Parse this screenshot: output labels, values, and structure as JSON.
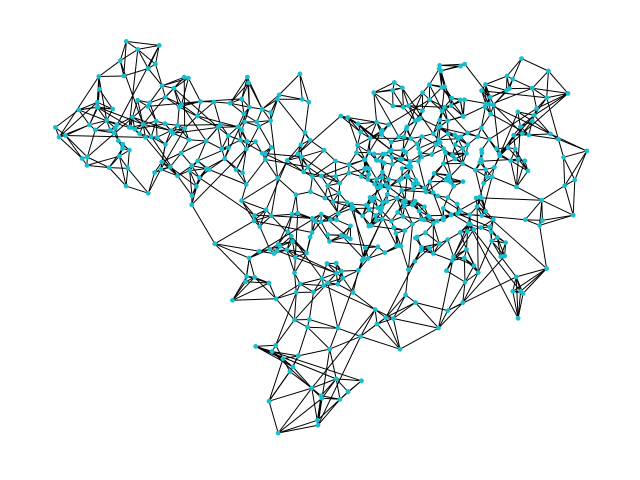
{
  "figure": {
    "background_color": "#ffffff",
    "node_color": "#17becf",
    "edge_color": "#000000",
    "node_count": 520,
    "layout_style": "force-directed network, dense core toward upper-right, sparse tail toward bottom-center",
    "axes_visible": false,
    "labels_visible": false
  }
}
